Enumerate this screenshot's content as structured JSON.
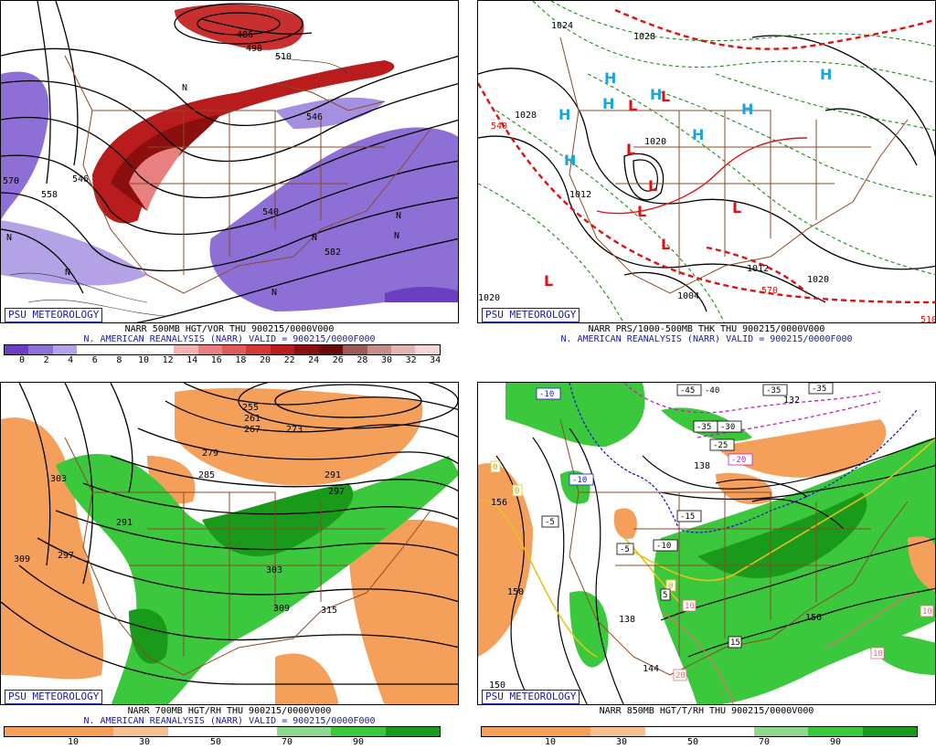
{
  "panels": [
    {
      "badge": "PSU METEOROLOGY",
      "caption1": "NARR 500MB HGT/VOR THU 900215/0000V000",
      "caption2": "N. AMERICAN REANALYSIS (NARR) VALID = 900215/0000F000",
      "colorbar": {
        "ticks": [
          "0",
          "2",
          "4",
          "6",
          "8",
          "10",
          "12",
          "14",
          "16",
          "18",
          "20",
          "22",
          "24",
          "26",
          "28",
          "30",
          "32",
          "34"
        ],
        "colors": [
          "#6a3fbf",
          "#8d6fd6",
          "#b4a2e6",
          "#ffffff",
          "#ffffff",
          "#ffffff",
          "#ffffff",
          "#f2b3b3",
          "#e88080",
          "#df5a5a",
          "#d23a3a",
          "#b81c1c",
          "#8b0f0f",
          "#6b0a0a",
          "#9a5b5b",
          "#c58c8c",
          "#e3b4b4",
          "#f5d5d5"
        ]
      },
      "map_labels": [
        "486",
        "498",
        "510",
        "546",
        "570",
        "558",
        "582",
        "540",
        "546",
        "N",
        "N",
        "N",
        "N",
        "N",
        "N",
        "N"
      ]
    },
    {
      "badge": "PSU METEOROLOGY",
      "caption1": "NARR PRS/1000-500MB THK THU 900215/0000V000",
      "caption2": "N. AMERICAN REANALYSIS (NARR) VALID = 900215/0000F000",
      "map_labels": [
        "1028",
        "1020",
        "1012",
        "1004",
        "1020",
        "1012",
        "1024",
        "1028",
        "540",
        "570",
        "510",
        "1020",
        "H",
        "H",
        "H",
        "H",
        "H",
        "H",
        "H",
        "H",
        "L",
        "L",
        "L",
        "L",
        "L",
        "L",
        "L",
        "L"
      ]
    },
    {
      "badge": "PSU METEOROLOGY",
      "caption1": "NARR 700MB HGT/RH THU 900215/0000V000",
      "caption2": "N. AMERICAN REANALYSIS (NARR) VALID = 900215/0000F000",
      "colorbar": {
        "ticks": [
          "10",
          "30",
          "50",
          "70",
          "90"
        ],
        "colors": [
          "#f5a05a",
          "#f5a05a",
          "#f7c090",
          "#ffffff",
          "#ffffff",
          "#8fd88f",
          "#3cc83c",
          "#1a9a1a"
        ]
      },
      "map_labels": [
        "255",
        "261",
        "267",
        "273",
        "279",
        "285",
        "291",
        "297",
        "303",
        "309",
        "315",
        "303",
        "309",
        "297",
        "291"
      ]
    },
    {
      "badge": "PSU METEOROLOGY",
      "caption1": "NARR 850MB HGT/T/RH THU 900215/0000V000",
      "caption2": "",
      "colorbar": {
        "ticks": [
          "10",
          "30",
          "50",
          "70",
          "90"
        ],
        "colors": [
          "#f5a05a",
          "#f5a05a",
          "#f7c090",
          "#ffffff",
          "#ffffff",
          "#8fd88f",
          "#3cc83c",
          "#1a9a1a"
        ]
      },
      "map_labels": [
        "-10",
        "-10",
        "-15",
        "-5",
        "-5",
        "-10",
        "-45",
        "-40",
        "-35",
        "-35",
        "-30",
        "-25",
        "-20",
        "-35",
        "132",
        "138",
        "156",
        "150",
        "150",
        "144",
        "156",
        "138",
        "0",
        "0",
        "0",
        "5",
        "10",
        "10",
        "15",
        "20",
        "10"
      ]
    }
  ]
}
